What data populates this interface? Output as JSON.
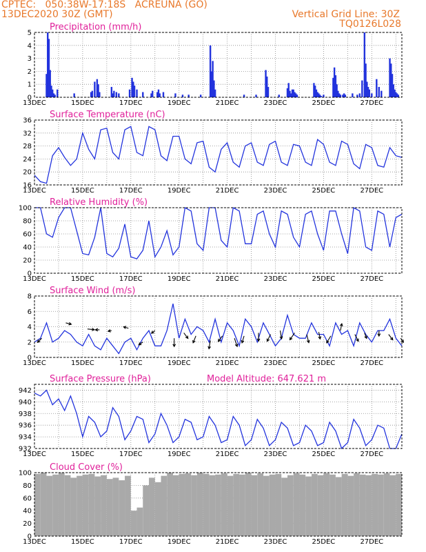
{
  "header": {
    "line1": "CPTEC:   050:38W-17:18S   ACREUNA (GO)",
    "line2": "13DEC2020 30Z (GMT)",
    "grid_note": "Vertical Grid Line: 30Z",
    "code": "TQ0126L028"
  },
  "colors": {
    "line": "#2233dd",
    "bars": "#2233dd",
    "cloud": "#a9a9a9",
    "title": "#e0209a",
    "header": "#e8782a",
    "grid": "#888888"
  },
  "x_labels": [
    "13DEC",
    "15DEC",
    "17DEC",
    "19DEC",
    "21DEC",
    "23DEC",
    "25DEC",
    "27DEC"
  ],
  "chart_data": [
    {
      "id": "precip",
      "type": "bar",
      "title": "Precipitation (mm/h)",
      "x_range_days": [
        13.0,
        28.25
      ],
      "ylim": [
        0,
        5
      ],
      "yticks": [
        0,
        1,
        2,
        3,
        4,
        5
      ],
      "x": [
        13.5,
        13.55,
        13.6,
        13.65,
        13.7,
        13.75,
        13.8,
        13.85,
        13.95,
        14.65,
        15.35,
        15.4,
        15.5,
        15.6,
        15.65,
        15.7,
        16.2,
        16.25,
        16.3,
        16.4,
        16.5,
        16.95,
        17.05,
        17.1,
        17.15,
        17.25,
        17.5,
        17.85,
        17.9,
        18.1,
        18.15,
        18.2,
        18.35,
        18.85,
        19.15,
        19.4,
        19.9,
        20.3,
        20.35,
        20.4,
        20.45,
        20.5,
        21.7,
        22.2,
        22.6,
        22.65,
        22.7,
        23.15,
        23.5,
        23.55,
        23.6,
        23.65,
        23.7,
        23.75,
        23.8,
        23.85,
        23.9,
        24.6,
        24.65,
        24.7,
        24.75,
        24.8,
        24.85,
        24.9,
        25.0,
        25.4,
        25.45,
        25.5,
        25.55,
        25.6,
        25.65,
        25.7,
        25.8,
        25.85,
        25.9,
        26.2,
        26.4,
        26.5,
        26.6,
        26.7,
        26.75,
        26.8,
        26.85,
        26.9,
        27.0,
        27.2,
        27.3,
        27.4,
        27.75,
        27.8,
        27.85,
        27.9,
        27.95,
        28.0,
        28.05,
        28.1
      ],
      "values": [
        1.8,
        5.0,
        4.5,
        2.1,
        0.9,
        0.6,
        0.3,
        0.2,
        0.6,
        0.3,
        0.4,
        0.5,
        1.2,
        1.4,
        1.0,
        0.4,
        0.8,
        0.3,
        0.5,
        0.4,
        0.3,
        0.6,
        1.5,
        1.2,
        0.9,
        0.6,
        0.4,
        0.3,
        0.5,
        0.4,
        0.6,
        0.3,
        0.4,
        0.3,
        0.2,
        0.2,
        0.2,
        4.0,
        2.0,
        2.8,
        1.3,
        0.6,
        0.2,
        0.2,
        2.1,
        1.6,
        0.8,
        0.2,
        0.7,
        1.1,
        0.5,
        0.3,
        0.6,
        0.6,
        0.4,
        0.3,
        0.2,
        1.1,
        0.9,
        0.6,
        0.4,
        0.3,
        0.2,
        0.1,
        0.2,
        1.5,
        2.3,
        1.7,
        1.0,
        0.5,
        0.3,
        0.2,
        0.2,
        0.3,
        0.2,
        0.3,
        0.2,
        0.3,
        1.3,
        5.0,
        2.6,
        1.2,
        0.8,
        0.6,
        0.3,
        1.4,
        0.8,
        0.5,
        3.0,
        2.6,
        1.8,
        1.0,
        0.6,
        0.4,
        0.3,
        0.2
      ]
    },
    {
      "id": "temp",
      "type": "line",
      "title": "Surface Temperature (nC)",
      "x_range_days": [
        13.0,
        28.25
      ],
      "ylim": [
        16,
        36
      ],
      "yticks": [
        16,
        20,
        24,
        28,
        32,
        36
      ],
      "x": [
        13.0,
        13.25,
        13.5,
        13.75,
        14.0,
        14.25,
        14.5,
        14.75,
        15.0,
        15.25,
        15.5,
        15.75,
        16.0,
        16.25,
        16.5,
        16.75,
        17.0,
        17.25,
        17.5,
        17.75,
        18.0,
        18.25,
        18.5,
        18.75,
        19.0,
        19.25,
        19.5,
        19.75,
        20.0,
        20.25,
        20.5,
        20.75,
        21.0,
        21.25,
        21.5,
        21.75,
        22.0,
        22.25,
        22.5,
        22.75,
        23.0,
        23.25,
        23.5,
        23.75,
        24.0,
        24.25,
        24.5,
        24.75,
        25.0,
        25.25,
        25.5,
        25.75,
        26.0,
        26.25,
        26.5,
        26.75,
        27.0,
        27.25,
        27.5,
        27.75,
        28.0,
        28.25
      ],
      "values": [
        19.0,
        17.0,
        16.5,
        25.0,
        27.5,
        24.5,
        22.0,
        24.0,
        32.0,
        27.0,
        24.0,
        33.0,
        33.5,
        26.0,
        24.0,
        33.0,
        34.0,
        26.0,
        25.0,
        34.0,
        33.0,
        25.0,
        23.5,
        31.0,
        31.0,
        24.0,
        22.5,
        29.0,
        29.5,
        21.5,
        20.0,
        27.0,
        29.0,
        23.0,
        21.5,
        28.0,
        29.0,
        23.0,
        22.0,
        28.5,
        29.5,
        23.0,
        22.0,
        28.5,
        28.0,
        23.0,
        22.0,
        30.0,
        28.5,
        23.0,
        22.0,
        29.5,
        28.5,
        22.5,
        21.0,
        28.5,
        27.5,
        22.0,
        21.5,
        27.5,
        25.0,
        24.5
      ]
    },
    {
      "id": "rh",
      "type": "line",
      "title": "Relative Humidity (%)",
      "x_range_days": [
        13.0,
        28.25
      ],
      "ylim": [
        0,
        100
      ],
      "yticks": [
        0,
        20,
        40,
        60,
        80,
        100
      ],
      "x": [
        13.0,
        13.25,
        13.5,
        13.75,
        14.0,
        14.25,
        14.5,
        14.75,
        15.0,
        15.25,
        15.5,
        15.75,
        16.0,
        16.25,
        16.5,
        16.75,
        17.0,
        17.25,
        17.5,
        17.75,
        18.0,
        18.25,
        18.5,
        18.75,
        19.0,
        19.25,
        19.5,
        19.75,
        20.0,
        20.25,
        20.5,
        20.75,
        21.0,
        21.25,
        21.5,
        21.75,
        22.0,
        22.25,
        22.5,
        22.75,
        23.0,
        23.25,
        23.5,
        23.75,
        24.0,
        24.25,
        24.5,
        24.75,
        25.0,
        25.25,
        25.5,
        25.75,
        26.0,
        26.25,
        26.5,
        26.75,
        27.0,
        27.25,
        27.5,
        27.75,
        28.0,
        28.25
      ],
      "values": [
        100,
        100,
        60,
        55,
        85,
        100,
        100,
        65,
        30,
        28,
        55,
        100,
        30,
        25,
        38,
        75,
        25,
        22,
        35,
        80,
        25,
        40,
        65,
        28,
        40,
        100,
        95,
        45,
        35,
        100,
        100,
        50,
        40,
        100,
        95,
        45,
        45,
        90,
        95,
        60,
        40,
        95,
        90,
        55,
        40,
        90,
        95,
        60,
        35,
        95,
        95,
        60,
        30,
        100,
        95,
        40,
        35,
        95,
        90,
        40,
        85,
        90
      ]
    },
    {
      "id": "wind",
      "type": "line",
      "title": "Surface Wind (m/s)",
      "x_range_days": [
        13.0,
        28.25
      ],
      "ylim": [
        0,
        8
      ],
      "yticks": [
        0,
        2,
        4,
        6,
        8
      ],
      "x": [
        13.0,
        13.25,
        13.5,
        13.75,
        14.0,
        14.25,
        14.5,
        14.75,
        15.0,
        15.25,
        15.5,
        15.75,
        16.0,
        16.25,
        16.5,
        16.75,
        17.0,
        17.25,
        17.5,
        17.75,
        18.0,
        18.25,
        18.5,
        18.75,
        19.0,
        19.25,
        19.5,
        19.75,
        20.0,
        20.25,
        20.5,
        20.75,
        21.0,
        21.25,
        21.5,
        21.75,
        22.0,
        22.25,
        22.5,
        22.75,
        23.0,
        23.25,
        23.5,
        23.75,
        24.0,
        24.25,
        24.5,
        24.75,
        25.0,
        25.25,
        25.5,
        25.75,
        26.0,
        26.25,
        26.5,
        26.75,
        27.0,
        27.25,
        27.5,
        27.75,
        28.0,
        28.25
      ],
      "values": [
        2.0,
        2.5,
        4.5,
        2.0,
        2.5,
        3.5,
        3.0,
        2.0,
        1.5,
        3.0,
        1.5,
        1.0,
        2.5,
        1.5,
        0.5,
        2.0,
        2.5,
        1.0,
        2.5,
        3.5,
        1.5,
        1.5,
        3.5,
        7.0,
        2.5,
        5.0,
        3.0,
        4.0,
        3.5,
        2.0,
        5.0,
        2.0,
        4.5,
        3.5,
        1.5,
        5.0,
        4.0,
        2.0,
        4.5,
        3.0,
        1.5,
        2.5,
        5.5,
        3.0,
        2.5,
        2.5,
        4.5,
        3.0,
        3.0,
        1.5,
        4.5,
        3.0,
        3.5,
        1.5,
        4.5,
        3.0,
        2.0,
        3.5,
        3.5,
        5.0,
        2.5,
        1.5
      ],
      "arrows": [
        {
          "x": 13.3,
          "y": 2.5,
          "dx": -6,
          "dy": 6
        },
        {
          "x": 14.3,
          "y": 4.5,
          "dx": 8,
          "dy": 2
        },
        {
          "x": 15.2,
          "y": 3.7,
          "dx": 10,
          "dy": 1
        },
        {
          "x": 15.7,
          "y": 3.6,
          "dx": -6,
          "dy": 0
        },
        {
          "x": 16.2,
          "y": 3.5,
          "dx": -5,
          "dy": 1
        },
        {
          "x": 16.9,
          "y": 3.8,
          "dx": -7,
          "dy": -2
        },
        {
          "x": 17.5,
          "y": 2.0,
          "dx": -6,
          "dy": 4
        },
        {
          "x": 18.0,
          "y": 3.5,
          "dx": -5,
          "dy": 4
        },
        {
          "x": 18.8,
          "y": 2.5,
          "dx": 0,
          "dy": 12
        },
        {
          "x": 19.2,
          "y": 3.2,
          "dx": 6,
          "dy": 8
        },
        {
          "x": 19.7,
          "y": 2.8,
          "dx": -4,
          "dy": 10
        },
        {
          "x": 20.3,
          "y": 2.2,
          "dx": -2,
          "dy": 12
        },
        {
          "x": 20.8,
          "y": 2.8,
          "dx": -6,
          "dy": 8
        },
        {
          "x": 21.3,
          "y": 2.5,
          "dx": 4,
          "dy": 12
        },
        {
          "x": 21.7,
          "y": 2.8,
          "dx": -3,
          "dy": 10
        },
        {
          "x": 22.3,
          "y": 3.2,
          "dx": 0,
          "dy": 12
        },
        {
          "x": 22.8,
          "y": 3.0,
          "dx": -5,
          "dy": 10
        },
        {
          "x": 23.2,
          "y": 3.5,
          "dx": 2,
          "dy": 12
        },
        {
          "x": 23.8,
          "y": 3.2,
          "dx": -7,
          "dy": 10
        },
        {
          "x": 24.3,
          "y": 3.0,
          "dx": 3,
          "dy": 12
        },
        {
          "x": 24.8,
          "y": 3.3,
          "dx": 2,
          "dy": 10
        },
        {
          "x": 25.3,
          "y": 2.8,
          "dx": -6,
          "dy": 10
        },
        {
          "x": 25.7,
          "y": 3.5,
          "dx": 2,
          "dy": -10
        },
        {
          "x": 26.3,
          "y": 3.0,
          "dx": 5,
          "dy": 10
        },
        {
          "x": 26.7,
          "y": 3.2,
          "dx": 3,
          "dy": 8
        },
        {
          "x": 27.3,
          "y": 3.5,
          "dx": 0,
          "dy": 8
        },
        {
          "x": 27.7,
          "y": 3.0,
          "dx": 6,
          "dy": 8
        },
        {
          "x": 28.2,
          "y": 2.5,
          "dx": 4,
          "dy": 6
        }
      ]
    },
    {
      "id": "press",
      "type": "line",
      "title": "Surface Pressure (hPa)",
      "annotation": "Model Altitude: 647.621 m",
      "x_range_days": [
        13.0,
        28.25
      ],
      "ylim": [
        932,
        943
      ],
      "yticks": [
        932,
        934,
        936,
        938,
        940,
        942
      ],
      "x": [
        13.0,
        13.25,
        13.5,
        13.75,
        14.0,
        14.25,
        14.5,
        14.75,
        15.0,
        15.25,
        15.5,
        15.75,
        16.0,
        16.25,
        16.5,
        16.75,
        17.0,
        17.25,
        17.5,
        17.75,
        18.0,
        18.25,
        18.5,
        18.75,
        19.0,
        19.25,
        19.5,
        19.75,
        20.0,
        20.25,
        20.5,
        20.75,
        21.0,
        21.25,
        21.5,
        21.75,
        22.0,
        22.25,
        22.5,
        22.75,
        23.0,
        23.25,
        23.5,
        23.75,
        24.0,
        24.25,
        24.5,
        24.75,
        25.0,
        25.25,
        25.5,
        25.75,
        26.0,
        26.25,
        26.5,
        26.75,
        27.0,
        27.25,
        27.5,
        27.75,
        28.0,
        28.25
      ],
      "values": [
        941.5,
        941.0,
        942.0,
        939.5,
        940.5,
        938.5,
        941.0,
        938.0,
        934.0,
        937.5,
        936.5,
        934.0,
        935.0,
        939.0,
        937.5,
        933.5,
        935.0,
        937.5,
        937.0,
        933.0,
        934.5,
        938.0,
        936.0,
        933.0,
        934.0,
        937.0,
        936.5,
        933.5,
        934.0,
        937.5,
        936.0,
        933.0,
        933.5,
        937.5,
        936.0,
        932.5,
        933.5,
        937.0,
        935.5,
        932.5,
        933.5,
        936.5,
        935.5,
        932.5,
        933.0,
        936.0,
        935.0,
        932.5,
        933.0,
        936.5,
        935.0,
        932.0,
        933.0,
        937.0,
        935.5,
        932.5,
        933.5,
        936.0,
        935.5,
        932.0,
        932.0,
        934.5
      ]
    },
    {
      "id": "cloud",
      "type": "bar",
      "title": "Cloud Cover (%)",
      "x_range_days": [
        13.0,
        28.25
      ],
      "ylim": [
        0,
        100
      ],
      "yticks": [
        0,
        20,
        40,
        60,
        80,
        100
      ],
      "x": [
        13.0,
        13.25,
        13.5,
        13.75,
        14.0,
        14.25,
        14.5,
        14.75,
        15.0,
        15.25,
        15.5,
        15.75,
        16.0,
        16.25,
        16.5,
        16.75,
        17.0,
        17.25,
        17.5,
        17.75,
        18.0,
        18.25,
        18.5,
        18.75,
        19.0,
        19.25,
        19.5,
        19.75,
        20.0,
        20.25,
        20.5,
        20.75,
        21.0,
        21.25,
        21.5,
        21.75,
        22.0,
        22.25,
        22.5,
        22.75,
        23.0,
        23.25,
        23.5,
        23.75,
        24.0,
        24.25,
        24.5,
        24.75,
        25.0,
        25.25,
        25.5,
        25.75,
        26.0,
        26.25,
        26.5,
        26.75,
        27.0,
        27.25,
        27.5,
        27.75,
        28.0,
        28.25
      ],
      "values": [
        98,
        100,
        95,
        97,
        100,
        96,
        92,
        95,
        97,
        98,
        94,
        96,
        90,
        92,
        88,
        95,
        40,
        45,
        80,
        92,
        85,
        95,
        100,
        96,
        98,
        99,
        96,
        100,
        98,
        96,
        97,
        99,
        95,
        98,
        97,
        100,
        96,
        99,
        95,
        97,
        98,
        92,
        96,
        99,
        97,
        94,
        98,
        96,
        99,
        97,
        93,
        98,
        95,
        99,
        97,
        96,
        98,
        97,
        99,
        96,
        98,
        97
      ]
    }
  ]
}
